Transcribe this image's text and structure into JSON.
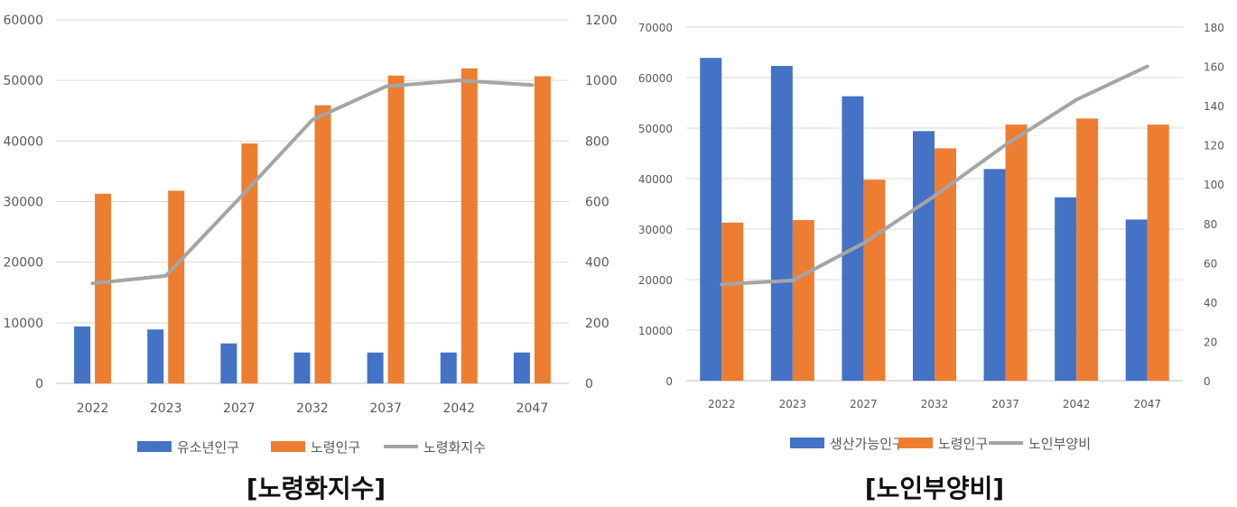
{
  "colors": {
    "blue": "#4472c4",
    "orange": "#ed7d31",
    "gray": "#a5a5a5",
    "grid": "#d9d9d9",
    "tick": "#595959"
  },
  "charts": [
    {
      "caption": "[노령화지수]",
      "chart_data": {
        "type": "bar",
        "categories": [
          "2022",
          "2023",
          "2027",
          "2032",
          "2037",
          "2042",
          "2047"
        ],
        "series": [
          {
            "name": "유소년인구",
            "kind": "bar",
            "axis": "left",
            "color": "#4472c4",
            "values": [
              9400,
              8900,
              6600,
              5100,
              5100,
              5100,
              5100
            ]
          },
          {
            "name": "노령인구",
            "kind": "bar",
            "axis": "left",
            "color": "#ed7d31",
            "values": [
              31300,
              31800,
              39600,
              45900,
              50800,
              52000,
              50700
            ]
          },
          {
            "name": "노령화지수",
            "kind": "line",
            "axis": "right",
            "color": "#a5a5a5",
            "values": [
              330,
              355,
              610,
              870,
              980,
              1000,
              985
            ]
          }
        ],
        "left_ticks": [
          "0",
          "10000",
          "20000",
          "30000",
          "40000",
          "50000",
          "60000"
        ],
        "right_ticks": [
          "0",
          "200",
          "400",
          "600",
          "800",
          "1000",
          "1200"
        ],
        "ylim": [
          0,
          60000
        ],
        "y2lim": [
          0,
          1200
        ],
        "grid": true,
        "legend": "bottom"
      }
    },
    {
      "caption": "[노인부양비]",
      "chart_data": {
        "type": "bar",
        "categories": [
          "2022",
          "2023",
          "2027",
          "2032",
          "2037",
          "2042",
          "2047"
        ],
        "series": [
          {
            "name": "생산가능인구",
            "kind": "bar",
            "axis": "left",
            "color": "#4472c4",
            "values": [
              63900,
              62300,
              56300,
              49400,
              41900,
              36300,
              31900
            ]
          },
          {
            "name": "노령인구",
            "kind": "bar",
            "axis": "left",
            "color": "#ed7d31",
            "values": [
              31300,
              31800,
              39800,
              46000,
              50700,
              51900,
              50700
            ]
          },
          {
            "name": "노인부양비",
            "kind": "line",
            "axis": "right",
            "color": "#a5a5a5",
            "values": [
              49,
              51,
              70,
              94,
              120,
              143,
              160
            ]
          }
        ],
        "left_ticks": [
          "0",
          "10000",
          "20000",
          "30000",
          "40000",
          "50000",
          "60000",
          "70000"
        ],
        "right_ticks": [
          "0",
          "20",
          "40",
          "60",
          "80",
          "100",
          "120",
          "140",
          "160",
          "180"
        ],
        "ylim": [
          0,
          70000
        ],
        "y2lim": [
          0,
          180
        ],
        "grid": true,
        "legend": "bottom"
      }
    }
  ]
}
